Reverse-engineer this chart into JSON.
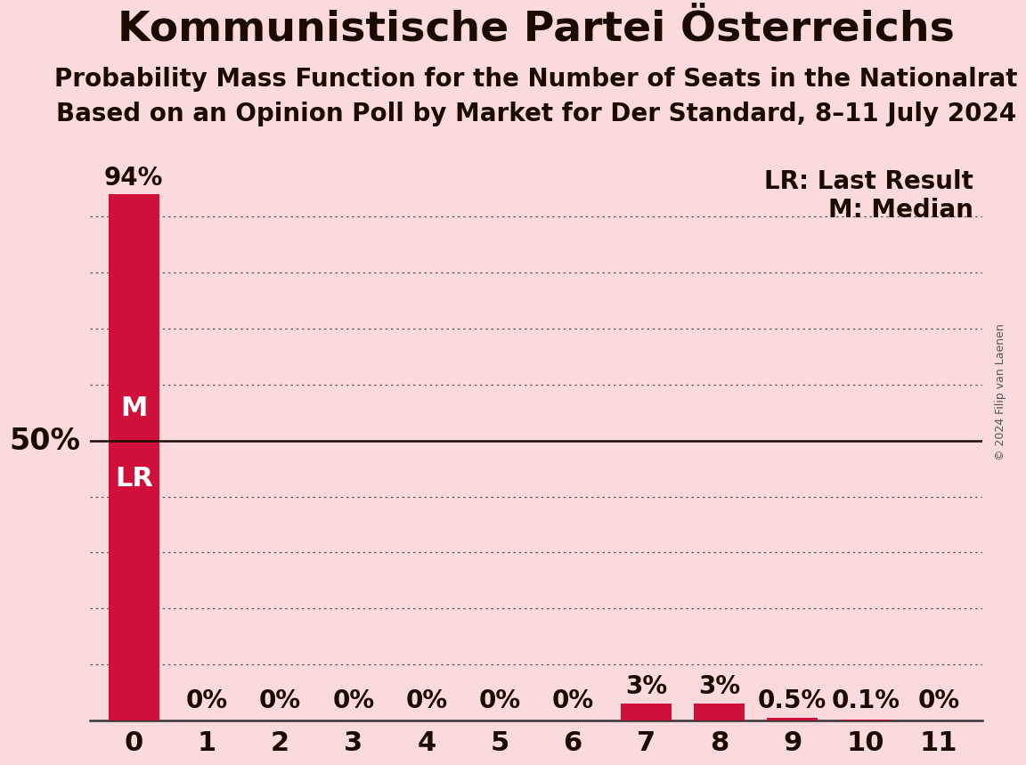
{
  "title": "Kommunistische Partei Österreichs",
  "subtitle1": "Probability Mass Function for the Number of Seats in the Nationalrat",
  "subtitle2": "Based on an Opinion Poll by Market for Der Standard, 8–11 July 2024",
  "copyright": "© 2024 Filip van Laenen",
  "categories": [
    0,
    1,
    2,
    3,
    4,
    5,
    6,
    7,
    8,
    9,
    10,
    11
  ],
  "values": [
    0.94,
    0.0,
    0.0,
    0.0,
    0.0,
    0.0,
    0.0,
    0.03,
    0.03,
    0.005,
    0.001,
    0.0
  ],
  "bar_color": "#D0103A",
  "background_color": "#FADADD",
  "value_labels": [
    "94%",
    "0%",
    "0%",
    "0%",
    "0%",
    "0%",
    "0%",
    "3%",
    "3%",
    "0.5%",
    "0.1%",
    "0%"
  ],
  "yline_50pct": 0.5,
  "legend_lr": "LR: Last Result",
  "legend_m": "M: Median",
  "ylabel_50": "50%",
  "dotted_grid_values": [
    0.1,
    0.2,
    0.3,
    0.4,
    0.6,
    0.7,
    0.8,
    0.9
  ],
  "ylim": [
    0,
    1.0
  ],
  "title_fontsize": 34,
  "subtitle_fontsize": 20,
  "tick_fontsize": 22,
  "label_fontsize": 20,
  "ml_fontsize": 22
}
